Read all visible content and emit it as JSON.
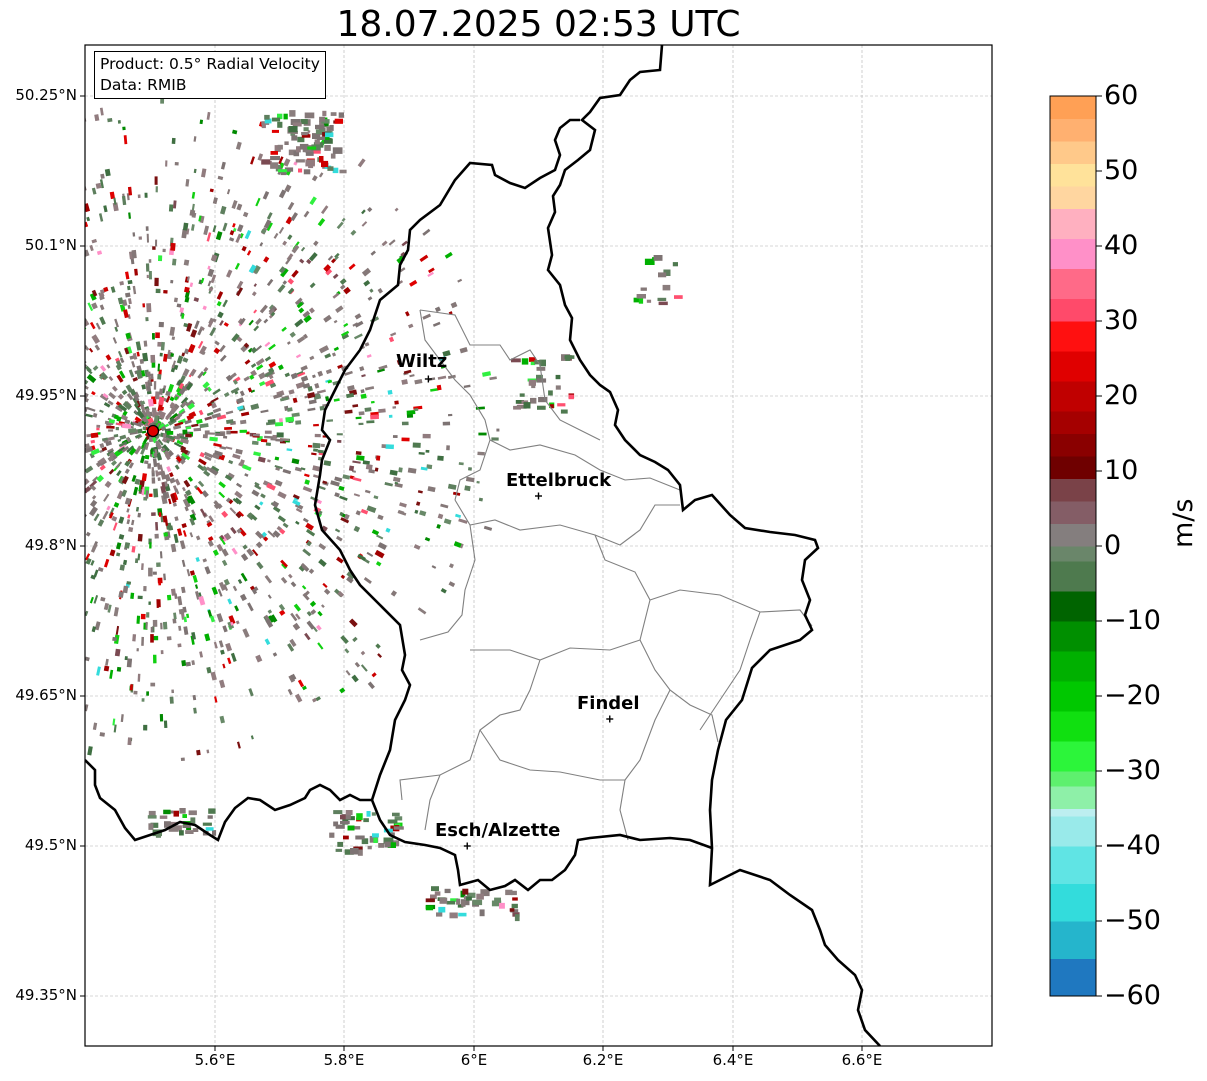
{
  "title": "18.07.2025 02:53 UTC",
  "info": {
    "product": "Product: 0.5° Radial Velocity",
    "data": "Data: RMIB"
  },
  "y_ticks": [
    "50.25°N",
    "50.1°N",
    "49.95°N",
    "49.8°N",
    "49.65°N",
    "49.5°N",
    "49.35°N"
  ],
  "x_ticks": [
    "5.6°E",
    "5.8°E",
    "6°E",
    "6.2°E",
    "6.4°E",
    "6.6°E"
  ],
  "cities": [
    {
      "name": "Wiltz",
      "lon": 5.93,
      "lat": 49.967
    },
    {
      "name": "Ettelbruck",
      "lon": 6.1,
      "lat": 49.85
    },
    {
      "name": "Findel",
      "lon": 6.21,
      "lat": 49.627
    },
    {
      "name": "Esch/Alzette",
      "lon": 5.99,
      "lat": 49.5
    }
  ],
  "radar_site": {
    "lon": 5.505,
    "lat": 49.915
  },
  "colorbar": {
    "ticks": [
      "60",
      "50",
      "40",
      "30",
      "20",
      "10",
      "0",
      "−10",
      "−20",
      "−30",
      "−40",
      "−50",
      "−60"
    ],
    "unit": "m/s",
    "range": [
      -60,
      60
    ]
  },
  "map_extent": {
    "lon": [
      5.4,
      6.8
    ],
    "lat": [
      49.3,
      50.3
    ]
  }
}
